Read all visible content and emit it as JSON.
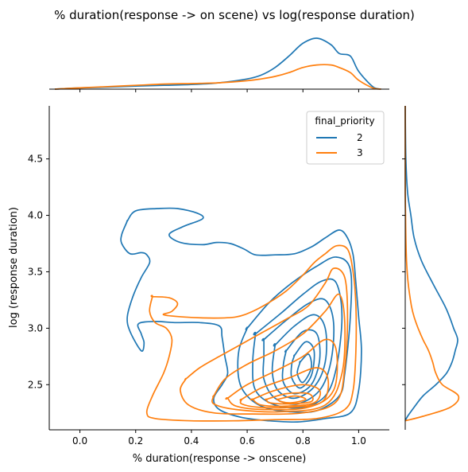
{
  "chart_data": {
    "type": "kde-joint",
    "title": "% duration(response -> on scene) vs log(response duration)",
    "xlabel": "% duration(response -> onscene)",
    "ylabel": "log (response duration)",
    "xlim": [
      -0.11,
      1.11
    ],
    "ylim": [
      2.1,
      4.97
    ],
    "xticks": [
      0.0,
      0.2,
      0.4,
      0.6,
      0.8,
      1.0
    ],
    "xtick_labels": [
      "0.0",
      "0.2",
      "0.4",
      "0.6",
      "0.8",
      "1.0"
    ],
    "yticks": [
      2.5,
      3.0,
      3.5,
      4.0,
      4.5
    ],
    "ytick_labels": [
      "2.5",
      "3.0",
      "3.5",
      "4.0",
      "4.5"
    ],
    "grid": false,
    "legend": {
      "title": "final_priority",
      "placement": "top-right"
    },
    "series": [
      {
        "name": "2",
        "color": "#1f77b4",
        "contours": [
          [
            [
              0.17,
              3.95
            ],
            [
              0.2,
              4.04
            ],
            [
              0.28,
              4.06
            ],
            [
              0.35,
              4.06
            ],
            [
              0.42,
              4.02
            ],
            [
              0.44,
              3.97
            ],
            [
              0.37,
              3.9
            ],
            [
              0.32,
              3.83
            ],
            [
              0.36,
              3.76
            ],
            [
              0.44,
              3.74
            ],
            [
              0.49,
              3.76
            ],
            [
              0.54,
              3.75
            ],
            [
              0.59,
              3.7
            ],
            [
              0.63,
              3.65
            ],
            [
              0.7,
              3.65
            ],
            [
              0.77,
              3.66
            ],
            [
              0.83,
              3.72
            ],
            [
              0.88,
              3.8
            ],
            [
              0.93,
              3.87
            ],
            [
              0.96,
              3.8
            ],
            [
              0.98,
              3.65
            ],
            [
              0.99,
              3.4
            ],
            [
              1.0,
              3.1
            ],
            [
              1.01,
              2.8
            ],
            [
              1.0,
              2.45
            ],
            [
              0.97,
              2.25
            ],
            [
              0.88,
              2.2
            ],
            [
              0.78,
              2.17
            ],
            [
              0.68,
              2.18
            ],
            [
              0.58,
              2.21
            ],
            [
              0.5,
              2.28
            ],
            [
              0.48,
              2.38
            ],
            [
              0.51,
              2.5
            ],
            [
              0.53,
              2.6
            ],
            [
              0.52,
              2.75
            ],
            [
              0.51,
              2.92
            ],
            [
              0.5,
              3.02
            ],
            [
              0.43,
              3.05
            ],
            [
              0.34,
              3.05
            ],
            [
              0.27,
              3.06
            ],
            [
              0.21,
              3.04
            ],
            [
              0.22,
              2.95
            ],
            [
              0.23,
              2.87
            ],
            [
              0.22,
              2.8
            ],
            [
              0.18,
              2.97
            ],
            [
              0.17,
              3.1
            ],
            [
              0.19,
              3.28
            ],
            [
              0.22,
              3.45
            ],
            [
              0.25,
              3.58
            ],
            [
              0.24,
              3.65
            ],
            [
              0.22,
              3.67
            ],
            [
              0.18,
              3.66
            ],
            [
              0.15,
              3.75
            ],
            [
              0.15,
              3.83
            ],
            [
              0.17,
              3.95
            ]
          ],
          [
            [
              0.6,
              3.0
            ],
            [
              0.68,
              3.23
            ],
            [
              0.76,
              3.4
            ],
            [
              0.85,
              3.55
            ],
            [
              0.92,
              3.63
            ],
            [
              0.97,
              3.52
            ],
            [
              0.97,
              3.1
            ],
            [
              0.95,
              2.6
            ],
            [
              0.93,
              2.4
            ],
            [
              0.85,
              2.27
            ],
            [
              0.75,
              2.26
            ],
            [
              0.66,
              2.3
            ],
            [
              0.6,
              2.4
            ],
            [
              0.57,
              2.55
            ],
            [
              0.57,
              2.8
            ],
            [
              0.6,
              3.0
            ]
          ],
          [
            [
              0.63,
              2.95
            ],
            [
              0.72,
              3.13
            ],
            [
              0.8,
              3.3
            ],
            [
              0.87,
              3.42
            ],
            [
              0.92,
              3.4
            ],
            [
              0.94,
              3.1
            ],
            [
              0.92,
              2.65
            ],
            [
              0.88,
              2.4
            ],
            [
              0.8,
              2.3
            ],
            [
              0.7,
              2.32
            ],
            [
              0.63,
              2.45
            ],
            [
              0.62,
              2.7
            ],
            [
              0.63,
              2.95
            ]
          ],
          [
            [
              0.66,
              2.9
            ],
            [
              0.74,
              3.07
            ],
            [
              0.82,
              3.22
            ],
            [
              0.88,
              3.25
            ],
            [
              0.91,
              3.05
            ],
            [
              0.9,
              2.7
            ],
            [
              0.86,
              2.45
            ],
            [
              0.78,
              2.33
            ],
            [
              0.7,
              2.38
            ],
            [
              0.66,
              2.55
            ],
            [
              0.66,
              2.75
            ],
            [
              0.66,
              2.9
            ]
          ],
          [
            [
              0.7,
              2.85
            ],
            [
              0.77,
              3.02
            ],
            [
              0.84,
              3.12
            ],
            [
              0.88,
              3.0
            ],
            [
              0.88,
              2.7
            ],
            [
              0.84,
              2.48
            ],
            [
              0.77,
              2.38
            ],
            [
              0.71,
              2.45
            ],
            [
              0.69,
              2.62
            ],
            [
              0.7,
              2.85
            ]
          ],
          [
            [
              0.74,
              2.8
            ],
            [
              0.8,
              2.97
            ],
            [
              0.85,
              2.95
            ],
            [
              0.86,
              2.72
            ],
            [
              0.83,
              2.5
            ],
            [
              0.77,
              2.42
            ],
            [
              0.73,
              2.52
            ],
            [
              0.73,
              2.68
            ],
            [
              0.74,
              2.8
            ]
          ],
          [
            [
              0.77,
              2.76
            ],
            [
              0.81,
              2.88
            ],
            [
              0.84,
              2.8
            ],
            [
              0.83,
              2.58
            ],
            [
              0.79,
              2.47
            ],
            [
              0.76,
              2.56
            ],
            [
              0.76,
              2.68
            ],
            [
              0.77,
              2.76
            ]
          ],
          [
            [
              0.79,
              2.7
            ],
            [
              0.82,
              2.77
            ],
            [
              0.83,
              2.65
            ],
            [
              0.8,
              2.52
            ],
            [
              0.78,
              2.6
            ],
            [
              0.79,
              2.7
            ]
          ]
        ]
      },
      {
        "name": "3",
        "color": "#ff7f0e",
        "contours": [
          [
            [
              0.26,
              3.28
            ],
            [
              0.32,
              3.27
            ],
            [
              0.35,
              3.22
            ],
            [
              0.33,
              3.15
            ],
            [
              0.3,
              3.12
            ],
            [
              0.37,
              3.1
            ],
            [
              0.48,
              3.09
            ],
            [
              0.56,
              3.1
            ],
            [
              0.62,
              3.15
            ],
            [
              0.68,
              3.23
            ],
            [
              0.74,
              3.33
            ],
            [
              0.8,
              3.47
            ],
            [
              0.84,
              3.58
            ],
            [
              0.88,
              3.66
            ],
            [
              0.92,
              3.73
            ],
            [
              0.96,
              3.7
            ],
            [
              0.98,
              3.5
            ],
            [
              0.99,
              3.2
            ],
            [
              0.99,
              2.8
            ],
            [
              0.98,
              2.45
            ],
            [
              0.95,
              2.28
            ],
            [
              0.85,
              2.2
            ],
            [
              0.7,
              2.19
            ],
            [
              0.55,
              2.18
            ],
            [
              0.4,
              2.18
            ],
            [
              0.27,
              2.2
            ],
            [
              0.24,
              2.25
            ],
            [
              0.26,
              2.4
            ],
            [
              0.3,
              2.6
            ],
            [
              0.32,
              2.75
            ],
            [
              0.33,
              2.9
            ],
            [
              0.31,
              3.0
            ],
            [
              0.27,
              3.05
            ],
            [
              0.25,
              3.15
            ],
            [
              0.26,
              3.28
            ]
          ],
          [
            [
              0.38,
              2.55
            ],
            [
              0.43,
              2.65
            ],
            [
              0.5,
              2.75
            ],
            [
              0.58,
              2.86
            ],
            [
              0.66,
              2.97
            ],
            [
              0.74,
              3.08
            ],
            [
              0.82,
              3.2
            ],
            [
              0.88,
              3.4
            ],
            [
              0.91,
              3.53
            ],
            [
              0.95,
              3.45
            ],
            [
              0.96,
              3.1
            ],
            [
              0.95,
              2.65
            ],
            [
              0.92,
              2.35
            ],
            [
              0.8,
              2.25
            ],
            [
              0.62,
              2.24
            ],
            [
              0.48,
              2.25
            ],
            [
              0.39,
              2.32
            ],
            [
              0.36,
              2.45
            ],
            [
              0.38,
              2.55
            ]
          ],
          [
            [
              0.48,
              2.4
            ],
            [
              0.52,
              2.55
            ],
            [
              0.6,
              2.68
            ],
            [
              0.7,
              2.8
            ],
            [
              0.8,
              2.95
            ],
            [
              0.88,
              3.15
            ],
            [
              0.93,
              3.3
            ],
            [
              0.95,
              3.05
            ],
            [
              0.94,
              2.6
            ],
            [
              0.88,
              2.32
            ],
            [
              0.72,
              2.26
            ],
            [
              0.56,
              2.28
            ],
            [
              0.48,
              2.33
            ],
            [
              0.48,
              2.4
            ]
          ],
          [
            [
              0.53,
              2.38
            ],
            [
              0.6,
              2.5
            ],
            [
              0.7,
              2.62
            ],
            [
              0.8,
              2.75
            ],
            [
              0.88,
              2.9
            ],
            [
              0.92,
              2.8
            ],
            [
              0.91,
              2.45
            ],
            [
              0.82,
              2.3
            ],
            [
              0.66,
              2.28
            ],
            [
              0.56,
              2.31
            ],
            [
              0.53,
              2.38
            ]
          ],
          [
            [
              0.58,
              2.37
            ],
            [
              0.65,
              2.47
            ],
            [
              0.75,
              2.56
            ],
            [
              0.85,
              2.65
            ],
            [
              0.89,
              2.55
            ],
            [
              0.87,
              2.35
            ],
            [
              0.76,
              2.3
            ],
            [
              0.64,
              2.3
            ],
            [
              0.58,
              2.33
            ],
            [
              0.58,
              2.37
            ]
          ],
          [
            [
              0.62,
              2.37
            ],
            [
              0.7,
              2.45
            ],
            [
              0.8,
              2.5
            ],
            [
              0.86,
              2.45
            ],
            [
              0.84,
              2.34
            ],
            [
              0.74,
              2.31
            ],
            [
              0.65,
              2.32
            ],
            [
              0.62,
              2.37
            ]
          ],
          [
            [
              0.67,
              2.37
            ],
            [
              0.74,
              2.42
            ],
            [
              0.82,
              2.42
            ],
            [
              0.83,
              2.35
            ],
            [
              0.75,
              2.33
            ],
            [
              0.68,
              2.34
            ],
            [
              0.67,
              2.37
            ]
          ],
          [
            [
              0.71,
              2.37
            ],
            [
              0.77,
              2.4
            ],
            [
              0.81,
              2.37
            ],
            [
              0.76,
              2.34
            ],
            [
              0.72,
              2.35
            ],
            [
              0.71,
              2.37
            ]
          ]
        ]
      }
    ],
    "marginal_x": {
      "x": [
        -0.09,
        0.0,
        0.1,
        0.2,
        0.3,
        0.4,
        0.5,
        0.6,
        0.65,
        0.7,
        0.75,
        0.8,
        0.85,
        0.9,
        0.93,
        0.97,
        1.0,
        1.05,
        1.08
      ],
      "series": [
        {
          "name": "2",
          "density": [
            0.0,
            0.05,
            0.08,
            0.12,
            0.15,
            0.18,
            0.25,
            0.4,
            0.55,
            0.85,
            1.3,
            1.8,
            2.0,
            1.75,
            1.4,
            1.3,
            0.7,
            0.1,
            0.0
          ]
        },
        {
          "name": "3",
          "density": [
            0.0,
            0.05,
            0.1,
            0.15,
            0.2,
            0.22,
            0.25,
            0.33,
            0.4,
            0.5,
            0.65,
            0.85,
            0.95,
            0.95,
            0.85,
            0.65,
            0.35,
            0.05,
            0.0
          ]
        }
      ]
    },
    "marginal_y": {
      "y": [
        2.18,
        2.22,
        2.3,
        2.4,
        2.5,
        2.6,
        2.7,
        2.8,
        2.9,
        3.0,
        3.1,
        3.2,
        3.4,
        3.6,
        3.8,
        4.0,
        4.2,
        4.5,
        4.97
      ],
      "series": [
        {
          "name": "2",
          "density": [
            0.0,
            0.15,
            0.55,
            1.1,
            1.9,
            2.55,
            2.9,
            3.1,
            3.25,
            3.0,
            2.75,
            2.45,
            1.7,
            1.0,
            0.55,
            0.35,
            0.15,
            0.04,
            0.0
          ]
        },
        {
          "name": "3",
          "density": [
            0.0,
            1.1,
            2.8,
            3.3,
            2.3,
            1.9,
            1.7,
            1.45,
            1.1,
            0.8,
            0.55,
            0.38,
            0.18,
            0.08,
            0.04,
            0.02,
            0.0,
            0.0,
            0.0
          ]
        }
      ]
    }
  }
}
